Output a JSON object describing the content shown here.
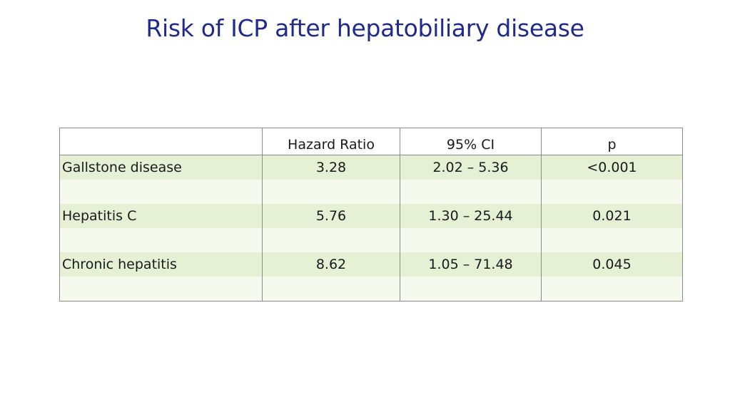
{
  "slide": {
    "title": "Risk of ICP after hepatobiliary disease"
  },
  "table": {
    "headers": [
      "",
      "Hazard Ratio",
      "95% CI",
      "p"
    ],
    "rows": [
      {
        "condition": "Gallstone disease",
        "hazard_ratio": "3.28",
        "ci": "2.02 – 5.36",
        "p": "<0.001"
      },
      {
        "condition": "Hepatitis C",
        "hazard_ratio": "5.76",
        "ci": "1.30 – 25.44",
        "p": "0.021"
      },
      {
        "condition": "Chronic hepatitis",
        "hazard_ratio": "8.62",
        "ci": "1.05 – 71.48",
        "p": "0.045"
      }
    ]
  }
}
